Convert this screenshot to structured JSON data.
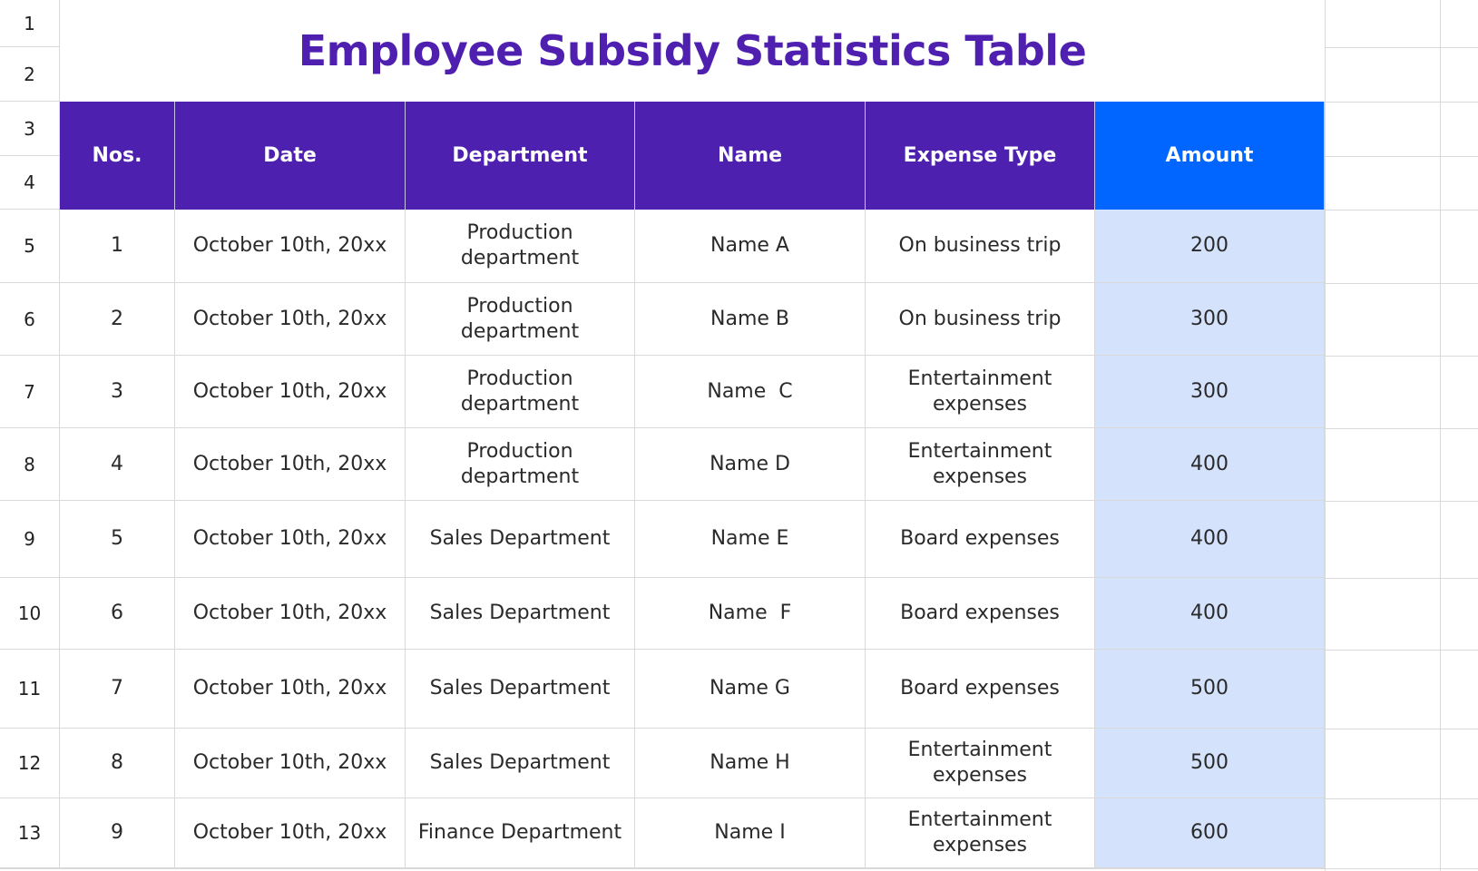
{
  "title": "Employee Subsidy Statistics Table",
  "row_numbers": [
    "1",
    "2",
    "3",
    "4",
    "5",
    "6",
    "7",
    "8",
    "9",
    "10",
    "11",
    "12",
    "13"
  ],
  "columns": [
    "Nos.",
    "Date",
    "Department",
    "Name",
    "Expense Type",
    "Amount"
  ],
  "rows": [
    {
      "no": "1",
      "date": "October 10th, 20xx",
      "dept": "Production department",
      "name": "Name A",
      "type": "On business trip",
      "amount": "200"
    },
    {
      "no": "2",
      "date": "October 10th, 20xx",
      "dept": "Production department",
      "name": "Name B",
      "type": "On business trip",
      "amount": "300"
    },
    {
      "no": "3",
      "date": "October 10th, 20xx",
      "dept": "Production department",
      "name": "Name  C",
      "type": "Entertainment expenses",
      "amount": "300"
    },
    {
      "no": "4",
      "date": "October 10th, 20xx",
      "dept": "Production department",
      "name": "Name D",
      "type": "Entertainment expenses",
      "amount": "400"
    },
    {
      "no": "5",
      "date": "October 10th, 20xx",
      "dept": "Sales Department",
      "name": "Name E",
      "type": "Board expenses",
      "amount": "400"
    },
    {
      "no": "6",
      "date": "October 10th, 20xx",
      "dept": "Sales Department",
      "name": "Name  F",
      "type": "Board expenses",
      "amount": "400"
    },
    {
      "no": "7",
      "date": "October 10th, 20xx",
      "dept": "Sales Department",
      "name": "Name G",
      "type": "Board expenses",
      "amount": "500"
    },
    {
      "no": "8",
      "date": "October 10th, 20xx",
      "dept": "Sales Department",
      "name": "Name H",
      "type": "Entertainment expenses",
      "amount": "500"
    },
    {
      "no": "9",
      "date": "October 10th, 20xx",
      "dept": "Finance Department",
      "name": "Name I",
      "type": "Entertainment expenses",
      "amount": "600"
    }
  ],
  "colors": {
    "header": "#4d20b0",
    "amount_header": "#0066ff",
    "amount_fill": "#d4e2fc",
    "title": "#4f20b0"
  }
}
